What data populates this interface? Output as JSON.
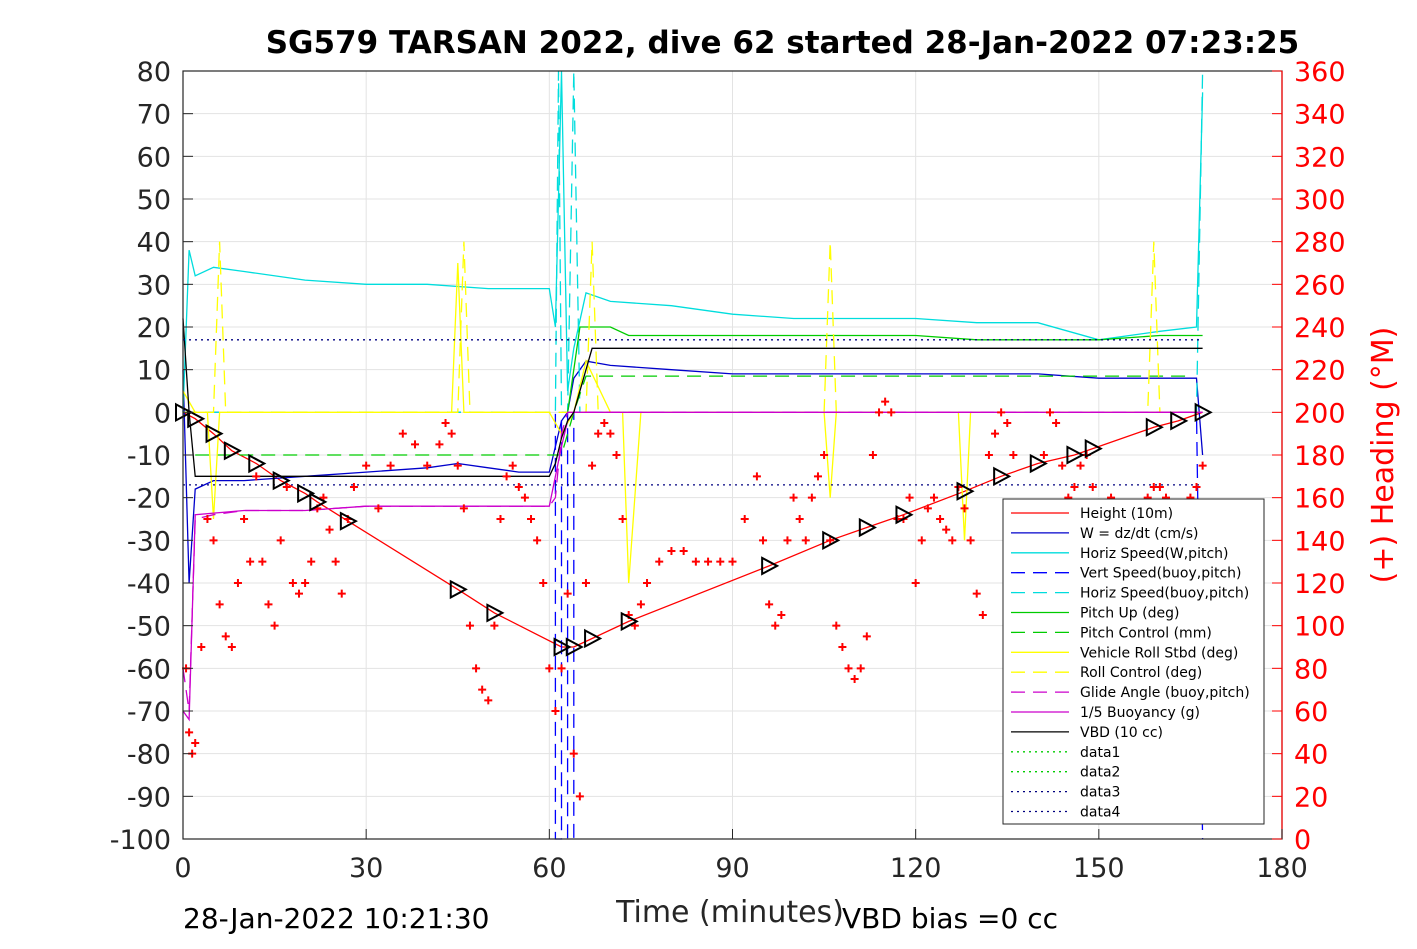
{
  "chart_data": {
    "type": "line",
    "title": "SG579 TARSAN 2022, dive 62 started 28-Jan-2022 07:23:25",
    "xlabel": "Time (minutes)",
    "ylabel_right": "(+) Heading (°M)",
    "footer_left": "28-Jan-2022 10:21:30",
    "footer_right": "VBD bias =0 cc",
    "xlim": [
      0,
      180
    ],
    "ylim_left": [
      -100,
      80
    ],
    "ylim_right": [
      0,
      360
    ],
    "x_ticks": [
      0,
      30,
      60,
      90,
      120,
      150,
      180
    ],
    "y_ticks_left": [
      80,
      70,
      60,
      50,
      40,
      30,
      20,
      10,
      0,
      -10,
      -20,
      -30,
      -40,
      -50,
      -60,
      -70,
      -80,
      -90,
      -100
    ],
    "y_ticks_right": [
      360,
      340,
      320,
      300,
      280,
      260,
      240,
      220,
      200,
      180,
      160,
      140,
      120,
      100,
      80,
      60,
      40,
      20,
      0
    ],
    "grid": true,
    "legend_position": "lower-right",
    "series": [
      {
        "name": "Height (10m)",
        "color": "#ff0000",
        "style": "solid",
        "markers": "triangle-black",
        "x": [
          0,
          2,
          5,
          8,
          12,
          16,
          20,
          22,
          27,
          45,
          51,
          62,
          64,
          67,
          73,
          96,
          106,
          112,
          118,
          128,
          134,
          140,
          146,
          149,
          159,
          163,
          167
        ],
        "y": [
          0,
          -1.5,
          -5,
          -9,
          -12,
          -16,
          -19,
          -21,
          -25.5,
          -41.5,
          -47,
          -55,
          -55,
          -53,
          -49,
          -36,
          -30,
          -27,
          -24,
          -18.5,
          -15,
          -12,
          -10,
          -8.5,
          -3.5,
          -2,
          0
        ]
      },
      {
        "name": "W = dz/dt (cm/s)",
        "color": "#0000cc",
        "style": "solid",
        "x": [
          0,
          1,
          2,
          5,
          10,
          20,
          30,
          40,
          45,
          50,
          55,
          60,
          61,
          62,
          63,
          64,
          66,
          70,
          80,
          90,
          100,
          110,
          120,
          130,
          140,
          150,
          160,
          166,
          167
        ],
        "y": [
          10,
          -40,
          -18,
          -16,
          -16,
          -15,
          -14,
          -13,
          -12,
          -13,
          -14,
          -14,
          -8,
          -2,
          0,
          8,
          12,
          11,
          10,
          9,
          9,
          9,
          9,
          9,
          9,
          8,
          8,
          8,
          -10
        ]
      },
      {
        "name": "Horiz Speed(W,pitch)",
        "color": "#00dddd",
        "style": "solid",
        "x": [
          0,
          1,
          2,
          5,
          10,
          20,
          30,
          40,
          50,
          60,
          61,
          62,
          63,
          64,
          66,
          70,
          80,
          90,
          100,
          110,
          120,
          130,
          140,
          150,
          160,
          166,
          167
        ],
        "y": [
          0,
          38,
          32,
          34,
          33,
          31,
          30,
          30,
          29,
          29,
          20,
          80,
          5,
          15,
          28,
          26,
          25,
          23,
          22,
          22,
          22,
          21,
          21,
          17,
          19,
          20,
          75
        ]
      },
      {
        "name": "Vert Speed(buoy,pitch)",
        "color": "#0000ff",
        "style": "dashed",
        "x": [
          0,
          61,
          61,
          62,
          62,
          63,
          63,
          64,
          64,
          166,
          167
        ],
        "y": [
          0,
          0,
          -100,
          -100,
          0,
          0,
          -100,
          -100,
          0,
          0,
          -100
        ]
      },
      {
        "name": "Horiz Speed(buoy,pitch)",
        "color": "#00dddd",
        "style": "dashed",
        "x": [
          0,
          61,
          61.5,
          62,
          63,
          64,
          65,
          166,
          167
        ],
        "y": [
          0,
          0,
          80,
          0,
          0,
          80,
          0,
          0,
          80
        ]
      },
      {
        "name": "Pitch Up (deg)",
        "color": "#00cc00",
        "style": "solid",
        "x": [
          63,
          64,
          65,
          70,
          73,
          80,
          90,
          100,
          110,
          120,
          130,
          140,
          150,
          160,
          167
        ],
        "y": [
          0,
          10,
          20,
          20,
          18,
          18,
          18,
          18,
          18,
          18,
          17,
          17,
          17,
          18,
          18
        ]
      },
      {
        "name": "Pitch Control (mm)",
        "color": "#00cc00",
        "style": "dashed",
        "x": [
          2,
          3,
          60,
          62,
          64,
          66,
          165
        ],
        "y": [
          -10,
          -10,
          -10,
          -10,
          0,
          8.5,
          8.5
        ]
      },
      {
        "name": "Vehicle Roll Stbd (deg)",
        "color": "#ffff00",
        "style": "solid",
        "x": [
          0,
          2,
          4,
          5,
          6,
          8,
          20,
          30,
          44,
          45,
          46,
          60,
          62,
          64,
          66,
          70,
          72,
          73,
          75,
          100,
          105,
          106,
          107,
          120,
          127,
          128,
          129,
          166,
          167
        ],
        "y": [
          5,
          0,
          0,
          -25,
          0,
          0,
          0,
          0,
          0,
          35,
          0,
          0,
          -5,
          0,
          12,
          0,
          0,
          -40,
          0,
          0,
          0,
          -20,
          0,
          0,
          0,
          -30,
          0,
          0,
          0
        ]
      },
      {
        "name": "Roll Control (deg)",
        "color": "#ffff00",
        "style": "dashed",
        "x": [
          0,
          2,
          5,
          6,
          7,
          8,
          20,
          45,
          46,
          47,
          60,
          66,
          67,
          68,
          100,
          105,
          106,
          107,
          140,
          158,
          159,
          160,
          167
        ],
        "y": [
          0,
          0,
          0,
          40,
          0,
          0,
          0,
          0,
          40,
          0,
          0,
          0,
          40,
          0,
          0,
          0,
          40,
          0,
          0,
          0,
          40,
          0,
          0
        ]
      },
      {
        "name": "Glide Angle (buoy,pitch)",
        "color": "#cc00cc",
        "style": "dashed",
        "x": [
          0,
          1,
          2,
          5,
          10,
          20,
          30,
          40,
          50,
          60,
          61,
          62,
          63,
          64,
          70,
          100,
          167
        ],
        "y": [
          -60,
          -70,
          -25,
          -24,
          -23,
          -23,
          -22,
          -22,
          -22,
          -22,
          -20,
          -5,
          0,
          0,
          0,
          0,
          0
        ]
      },
      {
        "name": "1/5 Buoyancy (g)",
        "color": "#cc00cc",
        "style": "solid",
        "x": [
          0,
          1,
          2,
          10,
          20,
          30,
          40,
          50,
          60,
          62,
          63,
          64,
          100,
          167
        ],
        "y": [
          -70,
          -72,
          -24,
          -23,
          -23,
          -22,
          -22,
          -22,
          -22,
          -8,
          -2,
          0,
          0,
          0
        ]
      },
      {
        "name": "VBD (10 cc)",
        "color": "#000000",
        "style": "solid",
        "x": [
          0,
          1,
          2,
          60,
          61,
          62,
          63,
          64,
          66,
          67,
          167
        ],
        "y": [
          22,
          0,
          -15,
          -15,
          -12,
          -6,
          -2,
          0,
          10,
          15,
          15
        ]
      },
      {
        "name": "data1",
        "color": "#00cc00",
        "style": "dotted",
        "x": [],
        "y": []
      },
      {
        "name": "data2",
        "color": "#00cc00",
        "style": "dotted",
        "x": [],
        "y": []
      },
      {
        "name": "data3",
        "color": "#000080",
        "style": "dotted",
        "x": [
          0,
          167
        ],
        "y": [
          17,
          17
        ]
      },
      {
        "name": "data4",
        "color": "#000080",
        "style": "dotted",
        "x": [
          0,
          167
        ],
        "y": [
          -17,
          -17
        ]
      }
    ],
    "heading_markers": {
      "color": "#ff0000",
      "marker": "plus",
      "axis": "right",
      "x": [
        0.5,
        1,
        1.5,
        2,
        3,
        4,
        5,
        6,
        7,
        8,
        9,
        10,
        11,
        12,
        13,
        14,
        15,
        16,
        17,
        18,
        19,
        20,
        21,
        22,
        23,
        24,
        25,
        26,
        27,
        28,
        30,
        32,
        34,
        36,
        38,
        40,
        42,
        43,
        44,
        45,
        46,
        47,
        48,
        49,
        50,
        51,
        52,
        53,
        54,
        55,
        56,
        57,
        58,
        59,
        60,
        61,
        62,
        63,
        64,
        65,
        66,
        67,
        68,
        69,
        70,
        71,
        72,
        73,
        74,
        75,
        76,
        78,
        80,
        82,
        84,
        86,
        88,
        90,
        92,
        94,
        95,
        96,
        97,
        98,
        99,
        100,
        101,
        102,
        103,
        104,
        105,
        106,
        107,
        108,
        109,
        110,
        111,
        112,
        113,
        114,
        115,
        116,
        117,
        118,
        119,
        120,
        121,
        122,
        123,
        124,
        125,
        126,
        127,
        128,
        129,
        130,
        131,
        132,
        133,
        134,
        135,
        136,
        137,
        138,
        139,
        140,
        141,
        142,
        143,
        144,
        145,
        146,
        147,
        148,
        149,
        150,
        152,
        154,
        156,
        158,
        159,
        160,
        161,
        162,
        163,
        164,
        165,
        166,
        167
      ],
      "y": [
        80,
        50,
        40,
        45,
        90,
        150,
        140,
        110,
        95,
        90,
        120,
        150,
        130,
        170,
        130,
        110,
        100,
        140,
        165,
        120,
        115,
        120,
        130,
        155,
        160,
        145,
        130,
        115,
        150,
        165,
        175,
        155,
        175,
        190,
        185,
        175,
        185,
        195,
        190,
        175,
        155,
        100,
        80,
        70,
        65,
        100,
        150,
        170,
        175,
        165,
        160,
        150,
        140,
        120,
        80,
        60,
        80,
        115,
        40,
        20,
        120,
        175,
        190,
        195,
        190,
        180,
        150,
        105,
        100,
        110,
        120,
        130,
        135,
        135,
        130,
        130,
        130,
        130,
        150,
        170,
        140,
        110,
        100,
        105,
        140,
        160,
        150,
        140,
        160,
        170,
        180,
        140,
        100,
        90,
        80,
        75,
        80,
        95,
        180,
        200,
        205,
        200,
        150,
        150,
        160,
        120,
        140,
        155,
        160,
        150,
        145,
        140,
        165,
        155,
        140,
        115,
        105,
        180,
        190,
        200,
        195,
        180,
        150,
        130,
        140,
        150,
        180,
        200,
        195,
        175,
        160,
        165,
        175,
        180,
        165,
        155,
        160,
        150,
        155,
        160,
        165,
        165,
        160,
        155,
        145,
        150,
        160,
        165,
        175
      ]
    },
    "legend_entries": [
      "Height (10m)",
      "W = dz/dt (cm/s)",
      "Horiz Speed(W,pitch)",
      "Vert Speed(buoy,pitch)",
      "Horiz Speed(buoy,pitch)",
      "Pitch Up (deg)",
      "Pitch Control (mm)",
      "Vehicle Roll Stbd (deg)",
      "Roll Control (deg)",
      "Glide Angle (buoy,pitch)",
      "1/5 Buoyancy (g)",
      "VBD (10 cc)",
      "data1",
      "data2",
      "data3",
      "data4"
    ]
  }
}
